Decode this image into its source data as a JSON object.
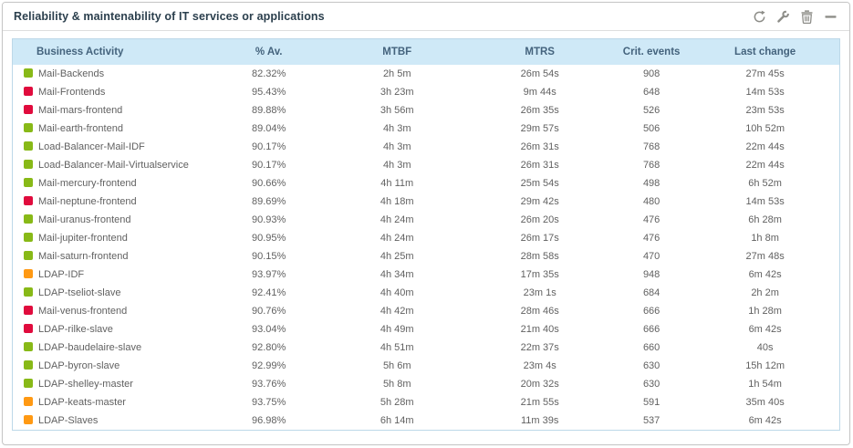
{
  "widget": {
    "title": "Reliability & maintenability of IT services or applications",
    "toolbar": {
      "icons": [
        {
          "name": "refresh-icon",
          "action": "refresh"
        },
        {
          "name": "wrench-icon",
          "action": "configure"
        },
        {
          "name": "trash-icon",
          "action": "delete"
        },
        {
          "name": "minus-icon",
          "action": "collapse"
        }
      ]
    }
  },
  "colors": {
    "ok": "#88b917",
    "critical": "#e00b3d",
    "warning": "#ff9913",
    "header_bg": "#cfe9f7",
    "header_text": "#44637d",
    "icon_gray": "#8d8d88"
  },
  "table": {
    "columns": [
      {
        "key": "name",
        "label": "Business Activity"
      },
      {
        "key": "availability",
        "label": "% Av."
      },
      {
        "key": "mtbf",
        "label": "MTBF"
      },
      {
        "key": "mtrs",
        "label": "MTRS"
      },
      {
        "key": "crit_events",
        "label": "Crit. events"
      },
      {
        "key": "last_change",
        "label": "Last change"
      }
    ],
    "rows": [
      {
        "status": "ok",
        "name": "Mail-Backends",
        "availability": "82.32%",
        "mtbf": "2h 5m",
        "mtrs": "26m 54s",
        "crit_events": "908",
        "last_change": "27m 45s"
      },
      {
        "status": "critical",
        "name": "Mail-Frontends",
        "availability": "95.43%",
        "mtbf": "3h 23m",
        "mtrs": "9m 44s",
        "crit_events": "648",
        "last_change": "14m 53s"
      },
      {
        "status": "critical",
        "name": "Mail-mars-frontend",
        "availability": "89.88%",
        "mtbf": "3h 56m",
        "mtrs": "26m 35s",
        "crit_events": "526",
        "last_change": "23m 53s"
      },
      {
        "status": "ok",
        "name": "Mail-earth-frontend",
        "availability": "89.04%",
        "mtbf": "4h 3m",
        "mtrs": "29m 57s",
        "crit_events": "506",
        "last_change": "10h 52m"
      },
      {
        "status": "ok",
        "name": "Load-Balancer-Mail-IDF",
        "availability": "90.17%",
        "mtbf": "4h 3m",
        "mtrs": "26m 31s",
        "crit_events": "768",
        "last_change": "22m 44s"
      },
      {
        "status": "ok",
        "name": "Load-Balancer-Mail-Virtualservice",
        "availability": "90.17%",
        "mtbf": "4h 3m",
        "mtrs": "26m 31s",
        "crit_events": "768",
        "last_change": "22m 44s"
      },
      {
        "status": "ok",
        "name": "Mail-mercury-frontend",
        "availability": "90.66%",
        "mtbf": "4h 11m",
        "mtrs": "25m 54s",
        "crit_events": "498",
        "last_change": "6h 52m"
      },
      {
        "status": "critical",
        "name": "Mail-neptune-frontend",
        "availability": "89.69%",
        "mtbf": "4h 18m",
        "mtrs": "29m 42s",
        "crit_events": "480",
        "last_change": "14m 53s"
      },
      {
        "status": "ok",
        "name": "Mail-uranus-frontend",
        "availability": "90.93%",
        "mtbf": "4h 24m",
        "mtrs": "26m 20s",
        "crit_events": "476",
        "last_change": "6h 28m"
      },
      {
        "status": "ok",
        "name": "Mail-jupiter-frontend",
        "availability": "90.95%",
        "mtbf": "4h 24m",
        "mtrs": "26m 17s",
        "crit_events": "476",
        "last_change": "1h 8m"
      },
      {
        "status": "ok",
        "name": "Mail-saturn-frontend",
        "availability": "90.15%",
        "mtbf": "4h 25m",
        "mtrs": "28m 58s",
        "crit_events": "470",
        "last_change": "27m 48s"
      },
      {
        "status": "warning",
        "name": "LDAP-IDF",
        "availability": "93.97%",
        "mtbf": "4h 34m",
        "mtrs": "17m 35s",
        "crit_events": "948",
        "last_change": "6m 42s"
      },
      {
        "status": "ok",
        "name": "LDAP-tseliot-slave",
        "availability": "92.41%",
        "mtbf": "4h 40m",
        "mtrs": "23m 1s",
        "crit_events": "684",
        "last_change": "2h 2m"
      },
      {
        "status": "critical",
        "name": "Mail-venus-frontend",
        "availability": "90.76%",
        "mtbf": "4h 42m",
        "mtrs": "28m 46s",
        "crit_events": "666",
        "last_change": "1h 28m"
      },
      {
        "status": "critical",
        "name": "LDAP-rilke-slave",
        "availability": "93.04%",
        "mtbf": "4h 49m",
        "mtrs": "21m 40s",
        "crit_events": "666",
        "last_change": "6m 42s"
      },
      {
        "status": "ok",
        "name": "LDAP-baudelaire-slave",
        "availability": "92.80%",
        "mtbf": "4h 51m",
        "mtrs": "22m 37s",
        "crit_events": "660",
        "last_change": "40s"
      },
      {
        "status": "ok",
        "name": "LDAP-byron-slave",
        "availability": "92.99%",
        "mtbf": "5h 6m",
        "mtrs": "23m 4s",
        "crit_events": "630",
        "last_change": "15h 12m"
      },
      {
        "status": "ok",
        "name": "LDAP-shelley-master",
        "availability": "93.76%",
        "mtbf": "5h 8m",
        "mtrs": "20m 32s",
        "crit_events": "630",
        "last_change": "1h 54m"
      },
      {
        "status": "warning",
        "name": "LDAP-keats-master",
        "availability": "93.75%",
        "mtbf": "5h 28m",
        "mtrs": "21m 55s",
        "crit_events": "591",
        "last_change": "35m 40s"
      },
      {
        "status": "warning",
        "name": "LDAP-Slaves",
        "availability": "96.98%",
        "mtbf": "6h 14m",
        "mtrs": "11m 39s",
        "crit_events": "537",
        "last_change": "6m 42s"
      }
    ]
  }
}
